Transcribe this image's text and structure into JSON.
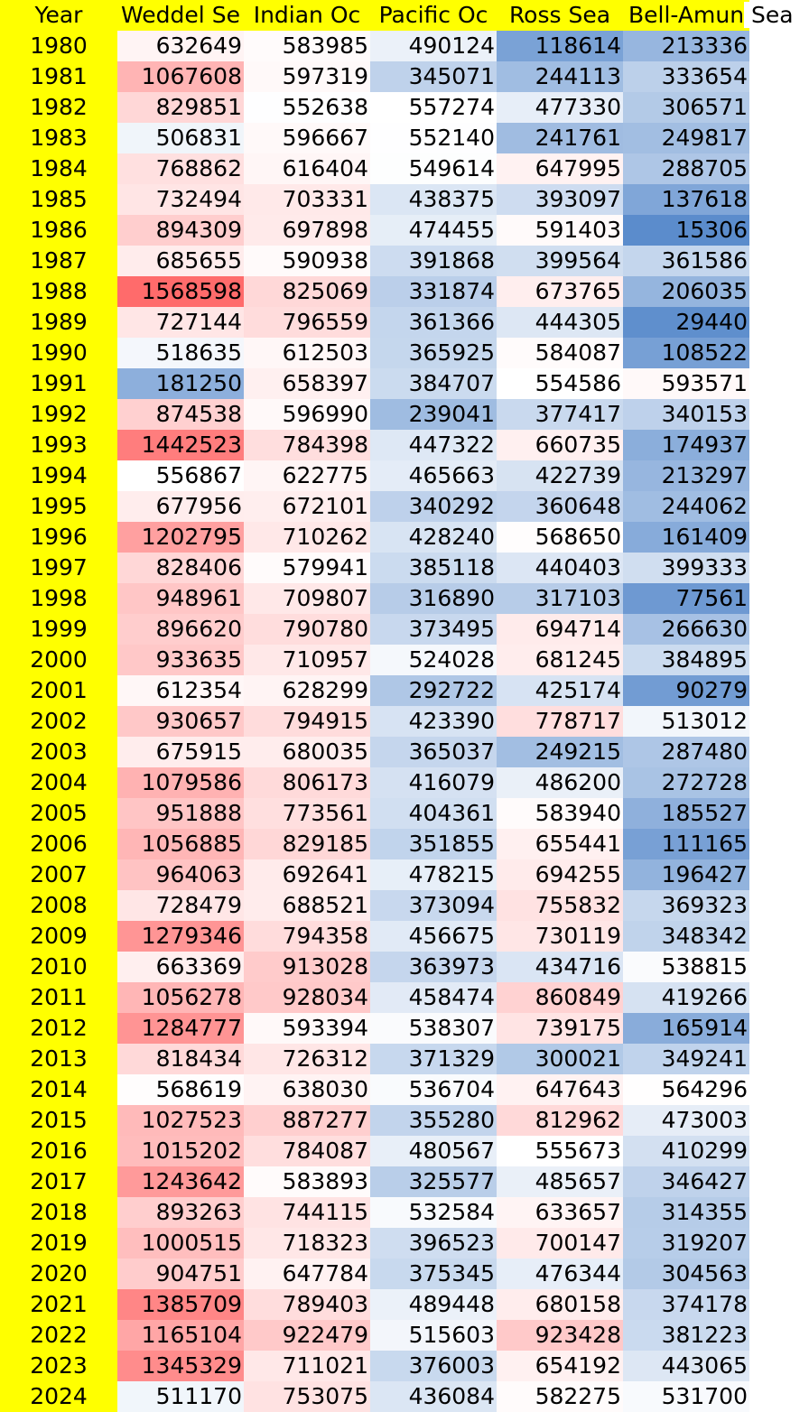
{
  "table": {
    "headers": [
      "Year",
      "Weddel Sea",
      "Indian Ocean",
      "Pacific Ocean",
      "Ross Sea",
      "Bell-Amundsen Sea"
    ],
    "header_display": [
      "Year",
      "Weddel Se",
      "Indian Oc",
      "Pacific Oc",
      "Ross Sea",
      "Bell-Amun"
    ],
    "header_overflow": "Sea"
  },
  "chart_data": {
    "type": "table",
    "color_scale": {
      "low": "#5b8ccc",
      "mid": "#ffffff",
      "high": "#ff6b6b"
    },
    "columns": [
      "Weddel Sea",
      "Indian Ocean",
      "Pacific Ocean",
      "Ross Sea",
      "Bell-Amundsen Sea"
    ],
    "rows": [
      {
        "year": "1980",
        "values": [
          632649,
          583985,
          490124,
          118614,
          213336
        ]
      },
      {
        "year": "1981",
        "values": [
          1067608,
          597319,
          345071,
          244113,
          333654
        ]
      },
      {
        "year": "1982",
        "values": [
          829851,
          552638,
          557274,
          477330,
          306571
        ]
      },
      {
        "year": "1983",
        "values": [
          506831,
          596667,
          552140,
          241761,
          249817
        ]
      },
      {
        "year": "1984",
        "values": [
          768862,
          616404,
          549614,
          647995,
          288705
        ]
      },
      {
        "year": "1985",
        "values": [
          732494,
          703331,
          438375,
          393097,
          137618
        ]
      },
      {
        "year": "1986",
        "values": [
          894309,
          697898,
          474455,
          591403,
          15306
        ]
      },
      {
        "year": "1987",
        "values": [
          685655,
          590938,
          391868,
          399564,
          361586
        ]
      },
      {
        "year": "1988",
        "values": [
          1568598,
          825069,
          331874,
          673765,
          206035
        ]
      },
      {
        "year": "1989",
        "values": [
          727144,
          796559,
          361366,
          444305,
          29440
        ]
      },
      {
        "year": "1990",
        "values": [
          518635,
          612503,
          365925,
          584087,
          108522
        ]
      },
      {
        "year": "1991",
        "values": [
          181250,
          658397,
          384707,
          554586,
          593571
        ]
      },
      {
        "year": "1992",
        "values": [
          874538,
          596990,
          239041,
          377417,
          340153
        ]
      },
      {
        "year": "1993",
        "values": [
          1442523,
          784398,
          447322,
          660735,
          174937
        ]
      },
      {
        "year": "1994",
        "values": [
          556867,
          622775,
          465663,
          422739,
          213297
        ]
      },
      {
        "year": "1995",
        "values": [
          677956,
          672101,
          340292,
          360648,
          244062
        ]
      },
      {
        "year": "1996",
        "values": [
          1202795,
          710262,
          428240,
          568650,
          161409
        ]
      },
      {
        "year": "1997",
        "values": [
          828406,
          579941,
          385118,
          440403,
          399333
        ]
      },
      {
        "year": "1998",
        "values": [
          948961,
          709807,
          316890,
          317103,
          77561
        ]
      },
      {
        "year": "1999",
        "values": [
          896620,
          790780,
          373495,
          694714,
          266630
        ]
      },
      {
        "year": "2000",
        "values": [
          933635,
          710957,
          524028,
          681245,
          384895
        ]
      },
      {
        "year": "2001",
        "values": [
          612354,
          628299,
          292722,
          425174,
          90279
        ]
      },
      {
        "year": "2002",
        "values": [
          930657,
          794915,
          423390,
          778717,
          513012
        ]
      },
      {
        "year": "2003",
        "values": [
          675915,
          680035,
          365037,
          249215,
          287480
        ]
      },
      {
        "year": "2004",
        "values": [
          1079586,
          806173,
          416079,
          486200,
          272728
        ]
      },
      {
        "year": "2005",
        "values": [
          951888,
          773561,
          404361,
          583940,
          185527
        ]
      },
      {
        "year": "2006",
        "values": [
          1056885,
          829185,
          351855,
          655441,
          111165
        ]
      },
      {
        "year": "2007",
        "values": [
          964063,
          692641,
          478215,
          694255,
          196427
        ]
      },
      {
        "year": "2008",
        "values": [
          728479,
          688521,
          373094,
          755832,
          369323
        ]
      },
      {
        "year": "2009",
        "values": [
          1279346,
          794358,
          456675,
          730119,
          348342
        ]
      },
      {
        "year": "2010",
        "values": [
          663369,
          913028,
          363973,
          434716,
          538815
        ]
      },
      {
        "year": "2011",
        "values": [
          1056278,
          928034,
          458474,
          860849,
          419266
        ]
      },
      {
        "year": "2012",
        "values": [
          1284777,
          593394,
          538307,
          739175,
          165914
        ]
      },
      {
        "year": "2013",
        "values": [
          818434,
          726312,
          371329,
          300021,
          349241
        ]
      },
      {
        "year": "2014",
        "values": [
          568619,
          638030,
          536704,
          647643,
          564296
        ]
      },
      {
        "year": "2015",
        "values": [
          1027523,
          887277,
          355280,
          812962,
          473003
        ]
      },
      {
        "year": "2016",
        "values": [
          1015202,
          784087,
          480567,
          555673,
          410299
        ]
      },
      {
        "year": "2017",
        "values": [
          1243642,
          583893,
          325577,
          485657,
          346427
        ]
      },
      {
        "year": "2018",
        "values": [
          893263,
          744115,
          532584,
          633657,
          314355
        ]
      },
      {
        "year": "2019",
        "values": [
          1000515,
          718323,
          396523,
          700147,
          319207
        ]
      },
      {
        "year": "2020",
        "values": [
          904751,
          647784,
          375345,
          476344,
          304563
        ]
      },
      {
        "year": "2021",
        "values": [
          1385709,
          789403,
          489448,
          680158,
          374178
        ]
      },
      {
        "year": "2022",
        "values": [
          1165104,
          922479,
          515603,
          923428,
          381223
        ]
      },
      {
        "year": "2023",
        "values": [
          1345329,
          711021,
          376003,
          654192,
          443065
        ]
      },
      {
        "year": "2024",
        "values": [
          511170,
          753075,
          436084,
          582275,
          531700
        ]
      }
    ]
  }
}
